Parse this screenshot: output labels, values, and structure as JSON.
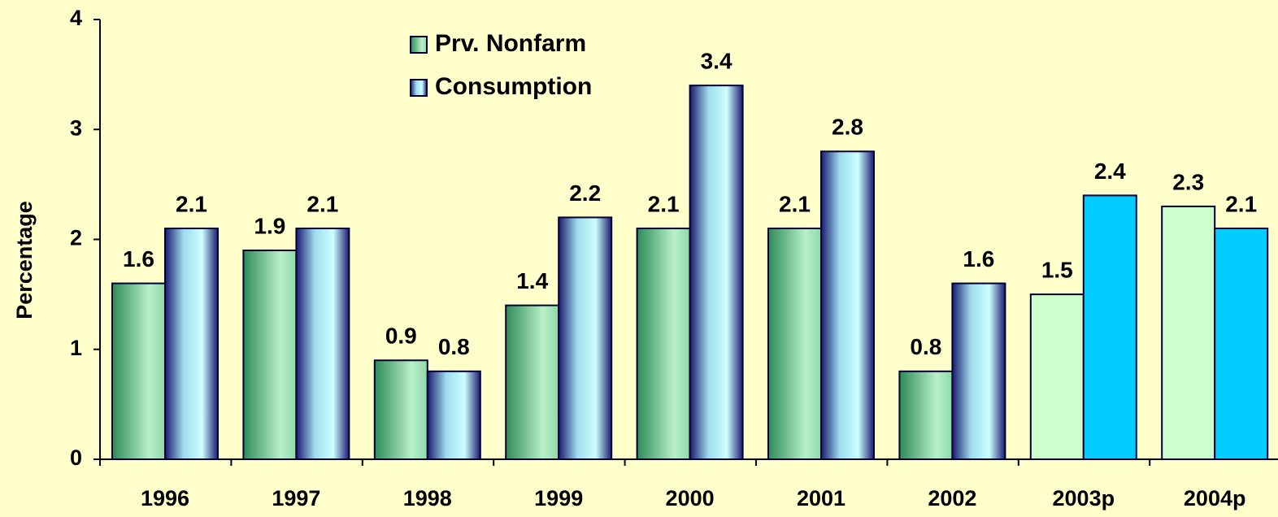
{
  "chart_data": {
    "type": "bar",
    "y_label": "Percentage",
    "categories": [
      "1996",
      "1997",
      "1998",
      "1999",
      "2000",
      "2001",
      "2002",
      "2003p",
      "2004p"
    ],
    "series": [
      {
        "name": "Prv. Nonfarm",
        "color": "#7fd6a0",
        "colors": [
          "#7fd6a0",
          "#7fd6a0",
          "#7fd6a0",
          "#7fd6a0",
          "#7fd6a0",
          "#7fd6a0",
          "#7fd6a0",
          "#ccffcc",
          "#ccffcc"
        ],
        "values": [
          1.6,
          1.9,
          0.9,
          1.4,
          2.1,
          2.1,
          0.8,
          1.5,
          2.3
        ]
      },
      {
        "name": "Consumption",
        "color": "#99ddee",
        "colors": [
          "#99ddee",
          "#99ddee",
          "#99ddee",
          "#99ddee",
          "#99ddee",
          "#99ddee",
          "#99ddee",
          "#00ccff",
          "#00ccff"
        ],
        "values": [
          2.1,
          2.1,
          0.8,
          2.2,
          3.4,
          2.8,
          1.6,
          2.4,
          2.1
        ]
      }
    ],
    "ylim": [
      0,
      4
    ],
    "yticks": [
      0,
      1,
      2,
      3,
      4
    ],
    "legend": "top-left"
  }
}
